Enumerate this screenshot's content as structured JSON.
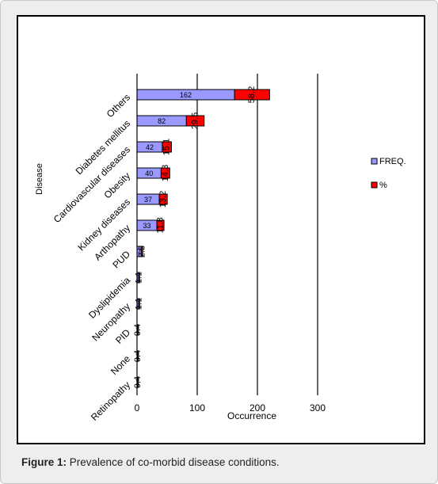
{
  "caption": {
    "label": "Figure 1:",
    "text": "Prevalence of co-morbid disease conditions."
  },
  "colors": {
    "freq": "#9999ff",
    "pct": "#ff0000",
    "border": "#000000"
  },
  "chart_data": {
    "type": "bar",
    "orientation": "horizontal",
    "stacked": true,
    "categories": [
      "Others",
      "Diabetes mellitus",
      "Cardiovascular diseases",
      "Obesity",
      "Kidney diseases",
      "Arthopathy",
      "PUD",
      "Dyslipidemia",
      "Neuropathy",
      "PID",
      "None",
      "Retinopathy"
    ],
    "series": [
      {
        "name": "FREQ.",
        "values": [
          162,
          82,
          42,
          40,
          37,
          33,
          7,
          3,
          3,
          1,
          1,
          1
        ],
        "labels": [
          "162",
          "82",
          "42",
          "40",
          "37",
          "33",
          "7",
          "3",
          "3",
          "1",
          "1",
          "1"
        ]
      },
      {
        "name": "%",
        "values": [
          58.2,
          29.5,
          15.1,
          14.3,
          13.2,
          11.8,
          2.5,
          1.1,
          1.1,
          0.4,
          0.4,
          0.4
        ],
        "labels": [
          "58.2",
          "29.5",
          "15.1",
          "14.3",
          "13.2",
          "11.8",
          "2.5",
          "1.1",
          "1.1",
          "0.4",
          "0.4",
          "0.4"
        ]
      }
    ],
    "xlabel": "Occurrence",
    "ylabel": "Disease",
    "xlim": [
      0,
      300
    ],
    "xticks": [
      "0",
      "100",
      "200",
      "300"
    ],
    "grid": true,
    "legend_position": "right"
  }
}
